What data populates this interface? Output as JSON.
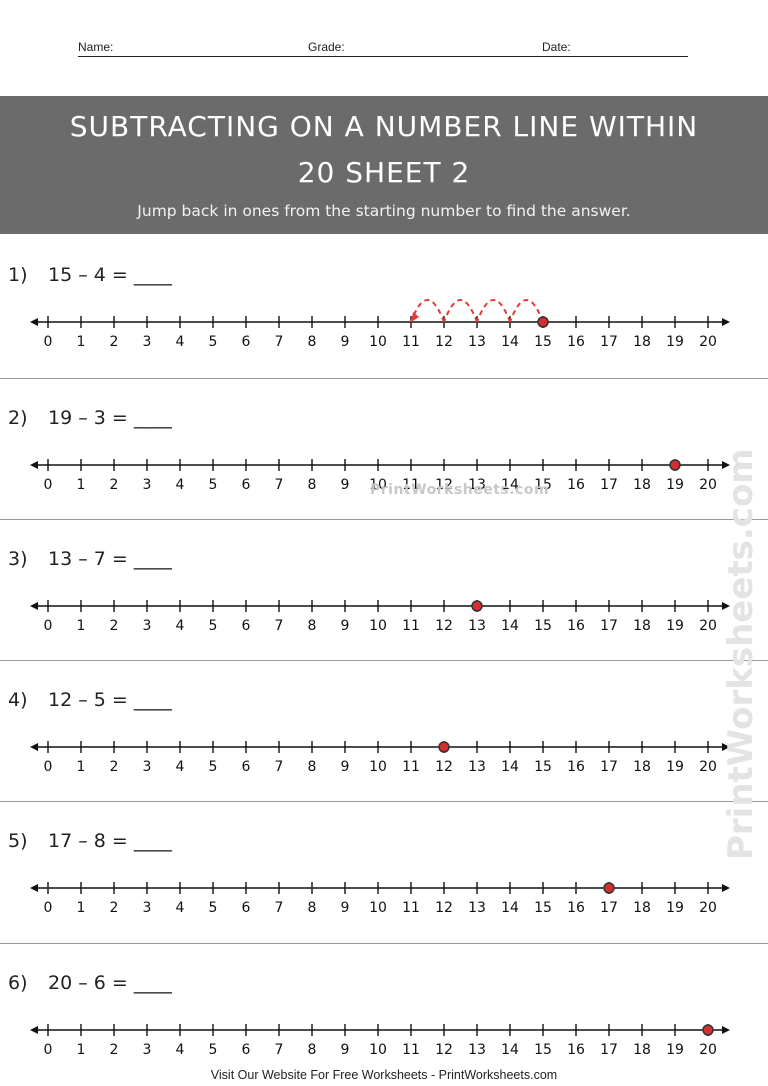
{
  "header": {
    "name_label": "Name:",
    "grade_label": "Grade:",
    "date_label": "Date:"
  },
  "banner": {
    "title_line1": "SUBTRACTING ON A NUMBER LINE WITHIN",
    "title_line2": "20 SHEET 2",
    "instructions": "Jump back in ones from the starting number to find the answer."
  },
  "number_line_ticks": [
    "0",
    "1",
    "2",
    "3",
    "4",
    "5",
    "6",
    "7",
    "8",
    "9",
    "10",
    "11",
    "12",
    "13",
    "14",
    "15",
    "16",
    "17",
    "18",
    "19",
    "20"
  ],
  "problems": [
    {
      "number": "1)",
      "text": "15 – 4 = ____",
      "start": 15,
      "jumps": 4,
      "jump_color": "#e53935"
    },
    {
      "number": "2)",
      "text": "19 – 3 = ____",
      "start": 19,
      "jumps": 0
    },
    {
      "number": "3)",
      "text": "13 – 7 = ____",
      "start": 13,
      "jumps": 0
    },
    {
      "number": "4)",
      "text": "12 – 5 = ____",
      "start": 12,
      "jumps": 0
    },
    {
      "number": "5)",
      "text": "17 – 8  = ____",
      "start": 17,
      "jumps": 0
    },
    {
      "number": "6)",
      "text": "20 – 6 = ____",
      "start": 20,
      "jumps": 0
    }
  ],
  "marker_color": "#d32f2f",
  "watermark": "PrintWorksheets.com",
  "footer": "Visit Our Website For Free Worksheets - PrintWorksheets.com"
}
